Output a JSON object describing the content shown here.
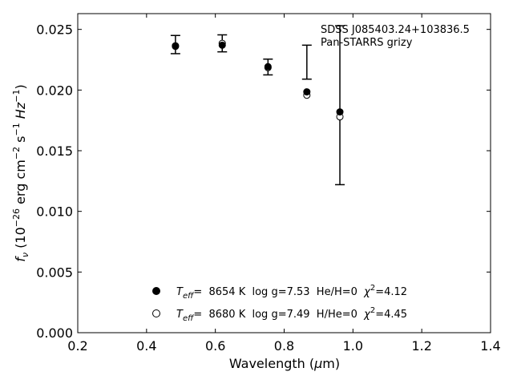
{
  "chart_data": {
    "type": "scatter",
    "annotation": [
      "SDSS J085403.24+103836.5",
      "Pan-STARRS grizy"
    ],
    "xlabel": {
      "main": "Wavelength (",
      "mu": "μ",
      "rest": "m)"
    },
    "ylabel": {
      "f": "f",
      "nu": "ν",
      "u1": " (10",
      "e1": "−26",
      "u2": " erg cm",
      "e2": "−2",
      "u3": " s",
      "e3": "−1",
      "u4": " Hz",
      "e4": "−1",
      "u5": ")"
    },
    "xlim": [
      0.2,
      1.4
    ],
    "ylim": [
      0.0,
      0.0263
    ],
    "xticks": [
      0.2,
      0.4,
      0.6,
      0.8,
      1.0,
      1.2,
      1.4
    ],
    "xtick_labels": [
      "0.2",
      "0.4",
      "0.6",
      "0.8",
      "1.0",
      "1.2",
      "1.4"
    ],
    "yticks": [
      0.0,
      0.005,
      0.01,
      0.015,
      0.02,
      0.025
    ],
    "ytick_labels": [
      "0.000",
      "0.005",
      "0.010",
      "0.015",
      "0.020",
      "0.025"
    ],
    "observed": {
      "x": [
        0.484,
        0.62,
        0.753,
        0.866,
        0.962
      ],
      "y": [
        0.02375,
        0.02385,
        0.0219,
        0.0223,
        0.01875
      ],
      "yerr": [
        0.00075,
        0.0007,
        0.00065,
        0.0014,
        0.00655
      ]
    },
    "series": [
      {
        "marker": "filled",
        "x": [
          0.484,
          0.62,
          0.753,
          0.866,
          0.962
        ],
        "y": [
          0.02365,
          0.0237,
          0.02193,
          0.01985,
          0.0182
        ],
        "legend": {
          "T": "T",
          "eff": "eff",
          "text": "=  8654 K  log g=7.53  He/H=0  ",
          "chi": "χ",
          "sq": "2",
          "chi_val": "=4.12"
        }
      },
      {
        "marker": "open",
        "x": [
          0.484,
          0.62,
          0.753,
          0.866,
          0.962
        ],
        "y": [
          0.0236,
          0.02385,
          0.02185,
          0.01958,
          0.0178
        ],
        "legend": {
          "T": "T",
          "eff": "eff",
          "text": "=  8680 K  log g=7.49  H/He=0  ",
          "chi": "χ",
          "sq": "2",
          "chi_val": "=4.45"
        }
      }
    ],
    "legend_position": "lower-center",
    "grid": false
  }
}
